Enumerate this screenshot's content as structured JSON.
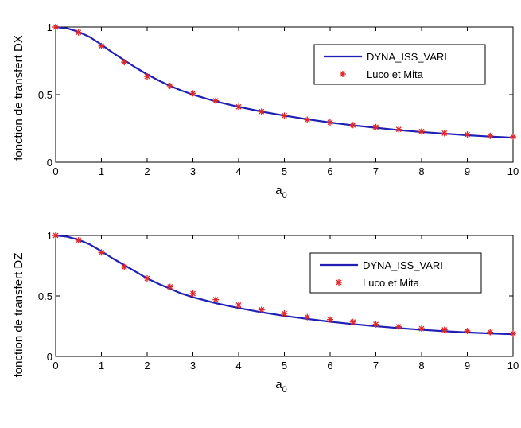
{
  "colors": {
    "line": "#1f1fb4",
    "marker": "#e0262a",
    "axes": "#000000",
    "background": "#ffffff"
  },
  "chart_data": [
    {
      "type": "line",
      "title": "",
      "xlabel_base": "a",
      "xlabel_sub": "0",
      "ylabel": "fonction de transfert DX",
      "xlim": [
        0,
        10
      ],
      "ylim": [
        0,
        1
      ],
      "xticks": [
        "0",
        "1",
        "2",
        "3",
        "4",
        "5",
        "6",
        "7",
        "8",
        "9",
        "10"
      ],
      "yticks": [
        "0",
        "0.5",
        "1"
      ],
      "legend_position": "top-right",
      "series": [
        {
          "name": "DYNA_ISS_VARI",
          "style": "line",
          "x": [
            0,
            0.25,
            0.5,
            0.75,
            1,
            1.25,
            1.5,
            1.75,
            2,
            2.25,
            2.5,
            2.75,
            3,
            3.5,
            4,
            4.5,
            5,
            5.5,
            6,
            6.5,
            7,
            7.5,
            8,
            8.5,
            9,
            9.5,
            10
          ],
          "y": [
            1,
            0.99,
            0.965,
            0.925,
            0.87,
            0.81,
            0.755,
            0.7,
            0.65,
            0.605,
            0.565,
            0.53,
            0.5,
            0.45,
            0.41,
            0.375,
            0.345,
            0.318,
            0.294,
            0.273,
            0.255,
            0.238,
            0.224,
            0.212,
            0.2,
            0.19,
            0.182
          ]
        },
        {
          "name": "Luco et Mita",
          "style": "marker",
          "x": [
            0,
            0.5,
            1,
            1.5,
            2,
            2.5,
            3,
            3.5,
            4,
            4.5,
            5,
            5.5,
            6,
            6.5,
            7,
            7.5,
            8,
            8.5,
            9,
            9.5,
            10
          ],
          "y": [
            1,
            0.96,
            0.86,
            0.74,
            0.635,
            0.565,
            0.51,
            0.455,
            0.41,
            0.375,
            0.345,
            0.315,
            0.295,
            0.275,
            0.26,
            0.243,
            0.228,
            0.215,
            0.205,
            0.195,
            0.188
          ]
        }
      ]
    },
    {
      "type": "line",
      "title": "",
      "xlabel_base": "a",
      "xlabel_sub": "0",
      "ylabel": "fonction de transfert DZ",
      "xlim": [
        0,
        10
      ],
      "ylim": [
        0,
        1
      ],
      "xticks": [
        "0",
        "1",
        "2",
        "3",
        "4",
        "5",
        "6",
        "7",
        "8",
        "9",
        "10"
      ],
      "yticks": [
        "0",
        "0.5",
        "1"
      ],
      "legend_position": "top-right",
      "series": [
        {
          "name": "DYNA_ISS_VARI",
          "style": "line",
          "x": [
            0,
            0.25,
            0.5,
            0.75,
            1,
            1.25,
            1.5,
            1.75,
            2,
            2.25,
            2.5,
            2.75,
            3,
            3.5,
            4,
            4.5,
            5,
            5.5,
            6,
            6.5,
            7,
            7.5,
            8,
            8.5,
            9,
            9.5,
            10
          ],
          "y": [
            1,
            0.99,
            0.965,
            0.925,
            0.87,
            0.81,
            0.755,
            0.7,
            0.645,
            0.6,
            0.56,
            0.52,
            0.49,
            0.44,
            0.4,
            0.365,
            0.335,
            0.31,
            0.287,
            0.267,
            0.25,
            0.234,
            0.22,
            0.208,
            0.198,
            0.19,
            0.183
          ]
        },
        {
          "name": "Luco et Mita",
          "style": "marker",
          "x": [
            0,
            0.5,
            1,
            1.5,
            2,
            2.5,
            3,
            3.5,
            4,
            4.5,
            5,
            5.5,
            6,
            6.5,
            7,
            7.5,
            8,
            8.5,
            9,
            9.5,
            10
          ],
          "y": [
            1,
            0.96,
            0.86,
            0.74,
            0.645,
            0.575,
            0.52,
            0.47,
            0.425,
            0.385,
            0.355,
            0.325,
            0.305,
            0.285,
            0.265,
            0.245,
            0.23,
            0.22,
            0.21,
            0.2,
            0.19
          ]
        }
      ]
    }
  ]
}
